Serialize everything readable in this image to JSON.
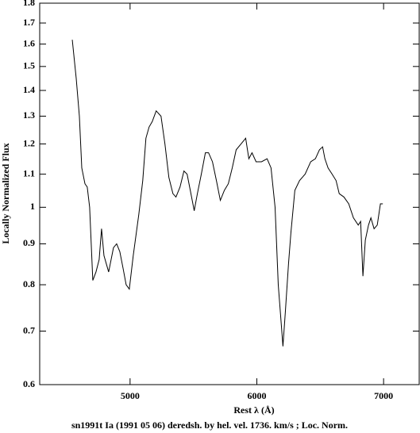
{
  "chart_data": {
    "type": "line",
    "xlabel": "Rest λ (Å)",
    "ylabel": "Locally Normalized Flux",
    "caption": "sn1991t Ia (1991 05 06) deredsh. by hel. vel.  1736. km/s ;  Loc. Norm.",
    "color": "#000000",
    "ylog": true,
    "xlim": [
      4287,
      7281
    ],
    "ylim": [
      0.6,
      1.8
    ],
    "xticks": [
      5000,
      6000,
      7000
    ],
    "yticks": [
      0.6,
      0.7,
      0.8,
      0.9,
      1,
      1.1,
      1.2,
      1.3,
      1.4,
      1.5,
      1.6,
      1.7,
      1.8
    ],
    "x": [
      4544,
      4575,
      4600,
      4619,
      4644,
      4662,
      4681,
      4706,
      4731,
      4756,
      4775,
      4794,
      4831,
      4869,
      4894,
      4919,
      4944,
      4969,
      4994,
      5025,
      5069,
      5100,
      5125,
      5150,
      5175,
      5206,
      5244,
      5275,
      5306,
      5338,
      5362,
      5394,
      5425,
      5450,
      5475,
      5506,
      5531,
      5562,
      5594,
      5619,
      5650,
      5681,
      5712,
      5744,
      5775,
      5806,
      5837,
      5875,
      5912,
      5937,
      5962,
      5994,
      6037,
      6081,
      6112,
      6144,
      6169,
      6194,
      6206,
      6225,
      6250,
      6269,
      6300,
      6337,
      6381,
      6425,
      6462,
      6494,
      6519,
      6537,
      6562,
      6594,
      6625,
      6650,
      6687,
      6725,
      6762,
      6800,
      6819,
      6837,
      6856,
      6881,
      6900,
      6925,
      6950,
      6975,
      6994
    ],
    "values": [
      1.62,
      1.45,
      1.3,
      1.12,
      1.07,
      1.06,
      1.0,
      0.81,
      0.83,
      0.86,
      0.94,
      0.87,
      0.83,
      0.89,
      0.9,
      0.88,
      0.84,
      0.8,
      0.79,
      0.87,
      0.98,
      1.08,
      1.22,
      1.26,
      1.28,
      1.32,
      1.3,
      1.2,
      1.09,
      1.04,
      1.03,
      1.06,
      1.11,
      1.1,
      1.05,
      0.99,
      1.04,
      1.1,
      1.17,
      1.17,
      1.14,
      1.08,
      1.02,
      1.05,
      1.07,
      1.12,
      1.18,
      1.2,
      1.22,
      1.15,
      1.17,
      1.14,
      1.14,
      1.15,
      1.12,
      1.0,
      0.8,
      0.71,
      0.67,
      0.74,
      0.85,
      0.93,
      1.05,
      1.08,
      1.1,
      1.14,
      1.15,
      1.18,
      1.19,
      1.15,
      1.12,
      1.1,
      1.08,
      1.04,
      1.03,
      1.01,
      0.97,
      0.95,
      0.96,
      0.82,
      0.91,
      0.95,
      0.97,
      0.94,
      0.95,
      1.01,
      1.01
    ]
  }
}
